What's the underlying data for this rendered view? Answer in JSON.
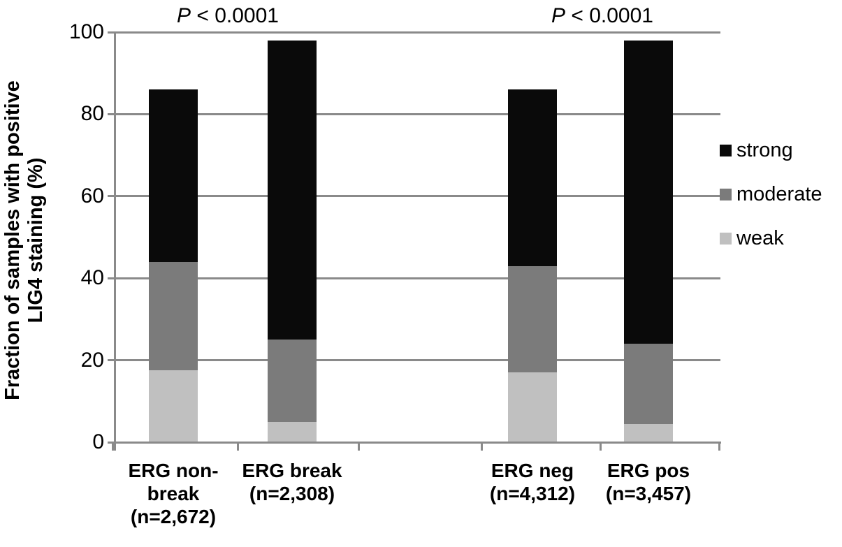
{
  "y_axis": {
    "title_line1": "Fraction of samples with positive",
    "title_line2": "LIG4 staining (%)",
    "ticks": [
      {
        "label": "100",
        "value": 100
      },
      {
        "label": "80",
        "value": 80
      },
      {
        "label": "60",
        "value": 60
      },
      {
        "label": "40",
        "value": 40
      },
      {
        "label": "20",
        "value": 20
      },
      {
        "label": "0",
        "value": 0
      }
    ]
  },
  "annotations": {
    "left": {
      "prefix": "P",
      "rest": " < 0.0001"
    },
    "right": {
      "prefix": "P",
      "rest": " < 0.0001"
    }
  },
  "legend": {
    "entries": [
      {
        "label": "strong",
        "color": "#0a0a0a"
      },
      {
        "label": "moderate",
        "color": "#7b7b7b"
      },
      {
        "label": "weak",
        "color": "#c0c0c0"
      }
    ]
  },
  "x_labels": [
    {
      "lines": "ERG non-\nbreak\n(n=2,672)"
    },
    {
      "lines": "ERG break\n(n=2,308)"
    },
    {
      "lines": "ERG neg\n(n=4,312)"
    },
    {
      "lines": "ERG pos\n(n=3,457)"
    }
  ],
  "colors": {
    "strong": "#0a0a0a",
    "moderate": "#7b7b7b",
    "weak": "#c0c0c0",
    "gridline": "#8a8a8a"
  },
  "chart_data": {
    "type": "bar",
    "stacked": true,
    "title": "",
    "ylabel": "Fraction of samples with positive LIG4 staining (%)",
    "ylim": [
      0,
      100
    ],
    "grid": true,
    "legend_position": "right",
    "categories": [
      "ERG non-break (n=2,672)",
      "ERG break (n=2,308)",
      "ERG neg (n=4,312)",
      "ERG pos (n=3,457)"
    ],
    "series": [
      {
        "name": "weak",
        "color": "#c0c0c0",
        "values": [
          17.5,
          5.0,
          17.0,
          4.5
        ]
      },
      {
        "name": "moderate",
        "color": "#7b7b7b",
        "values": [
          26.5,
          20.0,
          26.0,
          19.5
        ]
      },
      {
        "name": "strong",
        "color": "#0a0a0a",
        "values": [
          42.0,
          73.0,
          43.0,
          74.0
        ]
      }
    ],
    "stack_totals": [
      86,
      98,
      86,
      98
    ],
    "annotations": [
      {
        "text": "P < 0.0001",
        "over_categories": [
          0,
          1
        ]
      },
      {
        "text": "P < 0.0001",
        "over_categories": [
          2,
          3
        ]
      }
    ]
  }
}
